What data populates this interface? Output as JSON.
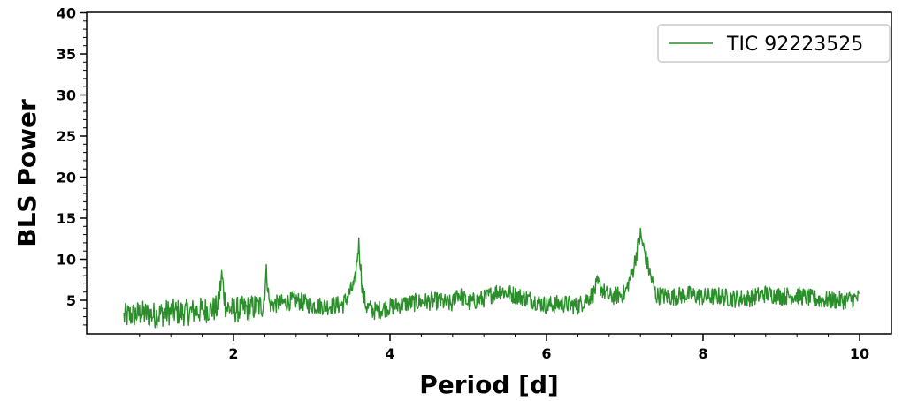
{
  "colors": {
    "series": "#2a8f2a",
    "frame": "#000000",
    "legend_border": "#cccccc"
  },
  "chart_data": {
    "type": "line",
    "title": "",
    "xlabel": "Period [d]",
    "ylabel": "BLS Power",
    "xlim": [
      0,
      10.2
    ],
    "ylim": [
      1,
      40
    ],
    "xticks": [
      2,
      4,
      6,
      8,
      10
    ],
    "yticks": [
      5,
      10,
      15,
      20,
      25,
      30,
      35,
      40
    ],
    "grid": false,
    "legend": {
      "position": "top-right",
      "entries": [
        "TIC 92223525"
      ]
    },
    "series": [
      {
        "name": "TIC 92223525",
        "x": [
          0.6,
          0.8,
          1.0,
          1.2,
          1.4,
          1.6,
          1.8,
          1.85,
          1.9,
          2.0,
          2.2,
          2.38,
          2.42,
          2.46,
          2.6,
          2.8,
          3.0,
          3.2,
          3.4,
          3.55,
          3.6,
          3.65,
          3.7,
          3.8,
          4.0,
          4.2,
          4.4,
          4.6,
          4.8,
          4.85,
          5.0,
          5.2,
          5.4,
          5.6,
          5.8,
          6.0,
          6.2,
          6.4,
          6.6,
          6.65,
          6.8,
          7.0,
          7.1,
          7.2,
          7.3,
          7.4,
          7.6,
          7.8,
          8.0,
          8.2,
          8.4,
          8.6,
          8.8,
          9.0,
          9.2,
          9.4,
          9.6,
          9.8,
          10.0
        ],
        "y": [
          3.0,
          3.4,
          3.2,
          3.6,
          3.5,
          3.8,
          4.0,
          8.0,
          4.2,
          3.8,
          4.0,
          4.4,
          8.5,
          4.5,
          4.6,
          5.0,
          4.4,
          4.3,
          4.5,
          7.0,
          12.0,
          6.0,
          4.2,
          3.7,
          4.2,
          4.6,
          4.8,
          4.9,
          4.5,
          6.0,
          4.7,
          5.2,
          6.2,
          5.6,
          5.1,
          4.4,
          4.6,
          4.3,
          5.8,
          7.0,
          5.4,
          5.8,
          8.5,
          13.0,
          9.0,
          5.6,
          5.4,
          5.7,
          5.4,
          5.5,
          5.2,
          5.3,
          5.8,
          5.5,
          5.6,
          5.2,
          5.0,
          5.0,
          5.3
        ]
      }
    ]
  }
}
